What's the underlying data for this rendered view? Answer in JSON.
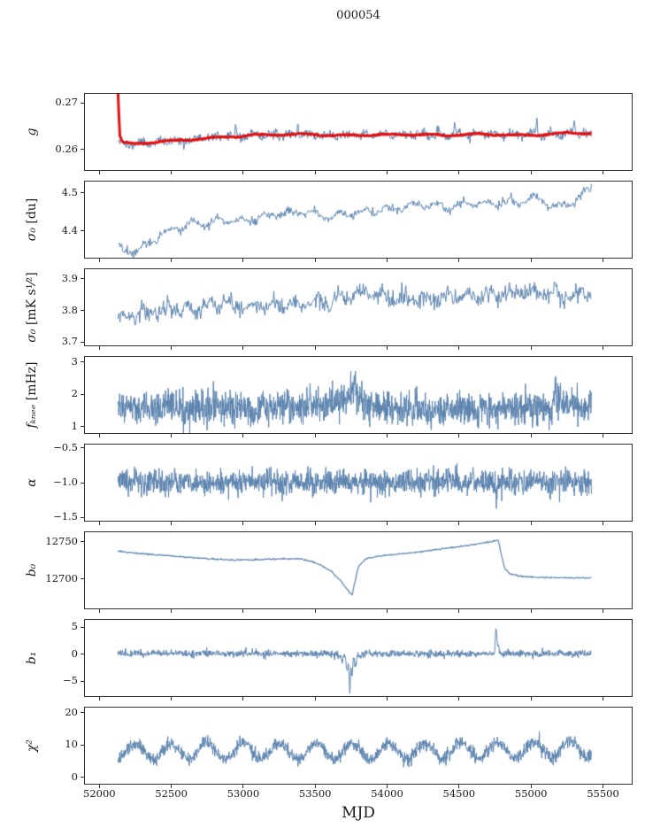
{
  "chart_data": {
    "type": "line",
    "title": "000054",
    "xlabel": "MJD",
    "legend": "none",
    "grid": false,
    "xlim": [
      51900,
      55700
    ],
    "x_data_range": [
      52130,
      55420
    ],
    "x_ticks": [
      52000,
      52500,
      53000,
      53500,
      54000,
      54500,
      55000,
      55500
    ],
    "x_tick_labels": [
      "52000",
      "52500",
      "53000",
      "53500",
      "54000",
      "54500",
      "55000",
      "55500"
    ],
    "line_color": "#5a82ad",
    "smooth_color": "#e40f0f",
    "panels": [
      {
        "name": "gain",
        "ylabel_var": "g",
        "ylabel_unit": "",
        "ylim": [
          0.2555,
          0.272
        ],
        "yticks": [
          {
            "v": 0.26,
            "label": "0.26"
          },
          {
            "v": 0.27,
            "label": "0.27"
          }
        ],
        "series": [
          {
            "name": "gain-raw",
            "color": "#5a82ad",
            "width": 1,
            "seed": 11,
            "n": 800,
            "noise": 0.00048,
            "osc": {
              "amp": 0.00045,
              "period": 130,
              "phase": 0.5
            },
            "anchors": [
              [
                52130,
                0.2621
              ],
              [
                52185,
                0.2609
              ],
              [
                52300,
                0.2613
              ],
              [
                52500,
                0.2618
              ],
              [
                52800,
                0.2625
              ],
              [
                53100,
                0.263
              ],
              [
                53400,
                0.2632
              ],
              [
                53650,
                0.2629
              ],
              [
                53900,
                0.2631
              ],
              [
                54150,
                0.2632
              ],
              [
                54400,
                0.263
              ],
              [
                54650,
                0.2633
              ],
              [
                54900,
                0.263
              ],
              [
                55100,
                0.2632
              ],
              [
                55280,
                0.2637
              ],
              [
                55420,
                0.2633
              ]
            ],
            "events": [
              {
                "x": 52950,
                "amp": 0.0026,
                "w": 7
              },
              {
                "x": 53380,
                "amp": 0.003,
                "w": 6
              },
              {
                "x": 54470,
                "amp": 0.0027,
                "w": 6
              },
              {
                "x": 55040,
                "amp": 0.0033,
                "w": 6
              },
              {
                "x": 54160,
                "amp": 0.0018,
                "w": 5
              },
              {
                "x": 52590,
                "amp": -0.0015,
                "w": 6
              },
              {
                "x": 55300,
                "amp": 0.002,
                "w": 8
              }
            ]
          },
          {
            "name": "gain-smooth",
            "color": "#e40f0f",
            "width": 3,
            "seed": 7,
            "n": 520,
            "noise": 7e-05,
            "osc": {
              "amp": 0.00015,
              "period": 300,
              "phase": 0
            },
            "anchors": [
              [
                52130,
                0.2719
              ],
              [
                52142,
                0.263
              ],
              [
                52160,
                0.2615
              ],
              [
                52230,
                0.2611
              ],
              [
                52360,
                0.2615
              ],
              [
                52550,
                0.2619
              ],
              [
                52800,
                0.2625
              ],
              [
                53100,
                0.2631
              ],
              [
                53400,
                0.2633
              ],
              [
                53650,
                0.263
              ],
              [
                53900,
                0.2631
              ],
              [
                54150,
                0.2632
              ],
              [
                54400,
                0.263
              ],
              [
                54650,
                0.2633
              ],
              [
                54900,
                0.263
              ],
              [
                55100,
                0.2632
              ],
              [
                55280,
                0.2636
              ],
              [
                55420,
                0.2634
              ]
            ],
            "events": []
          }
        ]
      },
      {
        "name": "sigma0-du",
        "ylabel_var": "σ₀",
        "ylabel_unit": " [du]",
        "ylim": [
          4.33,
          4.53
        ],
        "yticks": [
          {
            "v": 4.4,
            "label": "4.4"
          },
          {
            "v": 4.5,
            "label": "4.5"
          }
        ],
        "series": [
          {
            "name": "sigma0-du",
            "color": "#5a82ad",
            "width": 1,
            "seed": 22,
            "n": 620,
            "noise": 0.0055,
            "osc": {
              "amp": 0.007,
              "period": 170,
              "phase": 1.3
            },
            "anchors": [
              [
                52130,
                4.357
              ],
              [
                52210,
                4.346
              ],
              [
                52300,
                4.355
              ],
              [
                52420,
                4.392
              ],
              [
                52540,
                4.408
              ],
              [
                52700,
                4.42
              ],
              [
                52850,
                4.428
              ],
              [
                53000,
                4.425
              ],
              [
                53150,
                4.437
              ],
              [
                53300,
                4.448
              ],
              [
                53450,
                4.45
              ],
              [
                53570,
                4.437
              ],
              [
                53700,
                4.445
              ],
              [
                53850,
                4.452
              ],
              [
                54000,
                4.455
              ],
              [
                54150,
                4.465
              ],
              [
                54300,
                4.468
              ],
              [
                54450,
                4.462
              ],
              [
                54600,
                4.475
              ],
              [
                54750,
                4.472
              ],
              [
                54900,
                4.477
              ],
              [
                55050,
                4.486
              ],
              [
                55170,
                4.463
              ],
              [
                55300,
                4.477
              ],
              [
                55380,
                4.5
              ],
              [
                55420,
                4.518
              ]
            ],
            "events": []
          }
        ]
      },
      {
        "name": "sigma0-mks",
        "ylabel_var": "σ₀",
        "ylabel_unit": " [mK s¹⁄²]",
        "ylim": [
          3.69,
          3.93
        ],
        "yticks": [
          {
            "v": 3.7,
            "label": "3.7"
          },
          {
            "v": 3.8,
            "label": "3.8"
          },
          {
            "v": 3.9,
            "label": "3.9"
          }
        ],
        "series": [
          {
            "name": "sigma0-mks",
            "color": "#5a82ad",
            "width": 1,
            "seed": 33,
            "n": 700,
            "noise": 0.014,
            "osc": {
              "amp": 0.012,
              "period": 150,
              "phase": 0.2
            },
            "anchors": [
              [
                52130,
                3.772
              ],
              [
                52260,
                3.788
              ],
              [
                52400,
                3.797
              ],
              [
                52550,
                3.805
              ],
              [
                52700,
                3.81
              ],
              [
                52850,
                3.818
              ],
              [
                53000,
                3.812
              ],
              [
                53150,
                3.816
              ],
              [
                53300,
                3.82
              ],
              [
                53450,
                3.822
              ],
              [
                53600,
                3.83
              ],
              [
                53750,
                3.842
              ],
              [
                53870,
                3.862
              ],
              [
                53960,
                3.84
              ],
              [
                54100,
                3.832
              ],
              [
                54250,
                3.838
              ],
              [
                54400,
                3.84
              ],
              [
                54550,
                3.843
              ],
              [
                54700,
                3.848
              ],
              [
                54850,
                3.852
              ],
              [
                55000,
                3.858
              ],
              [
                55120,
                3.866
              ],
              [
                55220,
                3.842
              ],
              [
                55320,
                3.85
              ],
              [
                55420,
                3.856
              ]
            ],
            "events": []
          }
        ]
      },
      {
        "name": "fknee",
        "ylabel_var": "fₖₙₑₑ",
        "ylabel_unit": " [mHz]",
        "ylim": [
          0.8,
          3.15
        ],
        "yticks": [
          {
            "v": 1,
            "label": "1"
          },
          {
            "v": 2,
            "label": "2"
          },
          {
            "v": 3,
            "label": "3"
          }
        ],
        "series": [
          {
            "name": "fknee",
            "color": "#5a82ad",
            "width": 1,
            "seed": 44,
            "n": 1500,
            "noise": 0.26,
            "anchors": [
              [
                52130,
                1.6
              ],
              [
                52500,
                1.55
              ],
              [
                53000,
                1.55
              ],
              [
                53400,
                1.6
              ],
              [
                53650,
                1.72
              ],
              [
                53800,
                1.75
              ],
              [
                53950,
                1.6
              ],
              [
                54200,
                1.5
              ],
              [
                54500,
                1.48
              ],
              [
                54800,
                1.52
              ],
              [
                55050,
                1.6
              ],
              [
                55250,
                1.63
              ],
              [
                55420,
                1.6
              ]
            ],
            "events": [
              {
                "x": 53770,
                "amp": 0.45,
                "w": 40
              },
              {
                "x": 55180,
                "amp": 0.25,
                "w": 30
              }
            ]
          }
        ]
      },
      {
        "name": "alpha",
        "ylabel_var": "α",
        "ylabel_unit": "",
        "ylim": [
          -1.55,
          -0.45
        ],
        "yticks": [
          {
            "v": -1.5,
            "label": "−1.5"
          },
          {
            "v": -1.0,
            "label": "−1.0"
          },
          {
            "v": -0.5,
            "label": "−0.5"
          }
        ],
        "series": [
          {
            "name": "alpha",
            "color": "#5a82ad",
            "width": 1,
            "seed": 55,
            "n": 1500,
            "noise": 0.09,
            "anchors": [
              [
                52130,
                -0.99
              ],
              [
                53500,
                -1.0
              ],
              [
                54500,
                -0.99
              ],
              [
                55420,
                -0.99
              ]
            ],
            "events": [
              {
                "x": 54760,
                "amp": -0.3,
                "w": 5
              }
            ]
          }
        ]
      },
      {
        "name": "b0",
        "ylabel_var": "b₀",
        "ylabel_unit": "",
        "ylim": [
          12660,
          12763
        ],
        "yticks": [
          {
            "v": 12700,
            "label": "12700"
          },
          {
            "v": 12750,
            "label": "12750"
          }
        ],
        "series": [
          {
            "name": "b0",
            "color": "#5a82ad",
            "width": 1.2,
            "seed": 66,
            "n": 700,
            "noise": 0.45,
            "anchors": [
              [
                52130,
                12737
              ],
              [
                52300,
                12734
              ],
              [
                52500,
                12731
              ],
              [
                52700,
                12728
              ],
              [
                52900,
                12725.5
              ],
              [
                53100,
                12726
              ],
              [
                53250,
                12727
              ],
              [
                53400,
                12727
              ],
              [
                53500,
                12722
              ],
              [
                53600,
                12712
              ],
              [
                53680,
                12697
              ],
              [
                53730,
                12684
              ],
              [
                53757,
                12678
              ],
              [
                53775,
                12695
              ],
              [
                53800,
                12716
              ],
              [
                53850,
                12727
              ],
              [
                53950,
                12731
              ],
              [
                54100,
                12734
              ],
              [
                54250,
                12737
              ],
              [
                54400,
                12741
              ],
              [
                54550,
                12745
              ],
              [
                54650,
                12748
              ],
              [
                54740,
                12751
              ],
              [
                54772,
                12752.5
              ],
              [
                54788,
                12738
              ],
              [
                54815,
                12715
              ],
              [
                54850,
                12707
              ],
              [
                54930,
                12703.5
              ],
              [
                55050,
                12702
              ],
              [
                55200,
                12701.5
              ],
              [
                55420,
                12701
              ]
            ],
            "events": []
          }
        ]
      },
      {
        "name": "b1",
        "ylabel_var": "b₁",
        "ylabel_unit": "",
        "ylim": [
          -7.7,
          6.3
        ],
        "yticks": [
          {
            "v": -5,
            "label": "−5"
          },
          {
            "v": 0,
            "label": "0"
          },
          {
            "v": 5,
            "label": "5"
          }
        ],
        "series": [
          {
            "name": "b1",
            "color": "#5a82ad",
            "width": 1,
            "seed": 77,
            "n": 1400,
            "noise": 0.32,
            "anchors": [
              [
                52130,
                0.15
              ],
              [
                53000,
                0.1
              ],
              [
                54000,
                0.1
              ],
              [
                55420,
                0.1
              ]
            ],
            "events": [
              {
                "x": 53685,
                "amp": -1.2,
                "w": 18
              },
              {
                "x": 53722,
                "amp": -3.2,
                "w": 10
              },
              {
                "x": 53741,
                "amp": -7.2,
                "w": 6
              },
              {
                "x": 53757,
                "amp": -4.2,
                "w": 7
              },
              {
                "x": 53780,
                "amp": -2.2,
                "w": 10
              },
              {
                "x": 53815,
                "amp": -0.8,
                "w": 12
              },
              {
                "x": 54757,
                "amp": 4.7,
                "w": 7
              },
              {
                "x": 54772,
                "amp": 1.8,
                "w": 9
              }
            ]
          }
        ]
      },
      {
        "name": "chi2",
        "ylabel_var": "χ²",
        "ylabel_unit": "",
        "ylim": [
          -2,
          21.5
        ],
        "yticks": [
          {
            "v": 0,
            "label": "0"
          },
          {
            "v": 10,
            "label": "10"
          },
          {
            "v": 20,
            "label": "20"
          }
        ],
        "series": [
          {
            "name": "chi2",
            "color": "#5a82ad",
            "width": 1,
            "seed": 88,
            "n": 1400,
            "noise": 1.0,
            "osc": {
              "amp": 2.5,
              "period": 252,
              "phase": -1.3
            },
            "anchors": [
              [
                52130,
                7.8
              ],
              [
                52500,
                8.2
              ],
              [
                53200,
                8.1
              ],
              [
                54000,
                8.0
              ],
              [
                54800,
                8.2
              ],
              [
                55420,
                8.6
              ]
            ],
            "events": []
          }
        ]
      }
    ]
  }
}
